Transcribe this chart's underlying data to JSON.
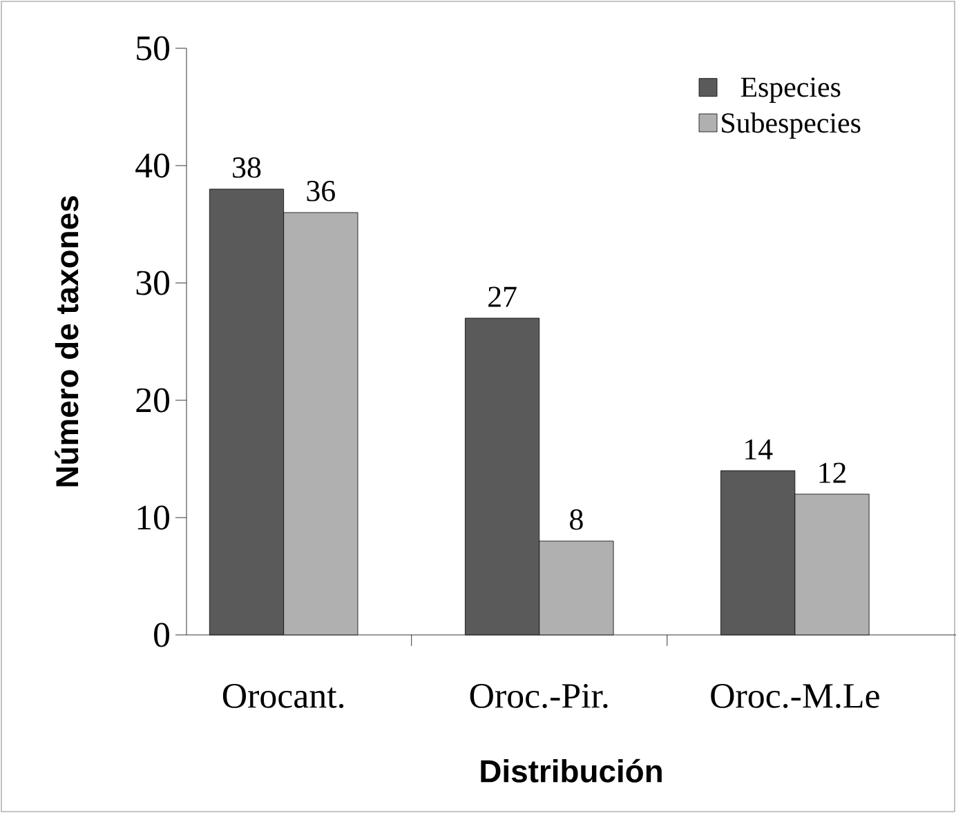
{
  "chart_data": {
    "type": "bar",
    "xlabel": "Distribución",
    "ylabel": "Número de taxones",
    "categories": [
      "Orocant.",
      "Oroc.-Pir.",
      "Oroc.-M.Le"
    ],
    "series": [
      {
        "name": "Especies",
        "color": "#5a5a5a",
        "values": [
          38,
          27,
          14
        ]
      },
      {
        "name": "Subespecies",
        "color": "#b0b0b0",
        "values": [
          36,
          8,
          12
        ]
      }
    ],
    "ylim": [
      0,
      50
    ],
    "yticks": [
      0,
      10,
      20,
      30,
      40,
      50
    ],
    "data_labels": true,
    "legend": "top right",
    "grid": false
  }
}
